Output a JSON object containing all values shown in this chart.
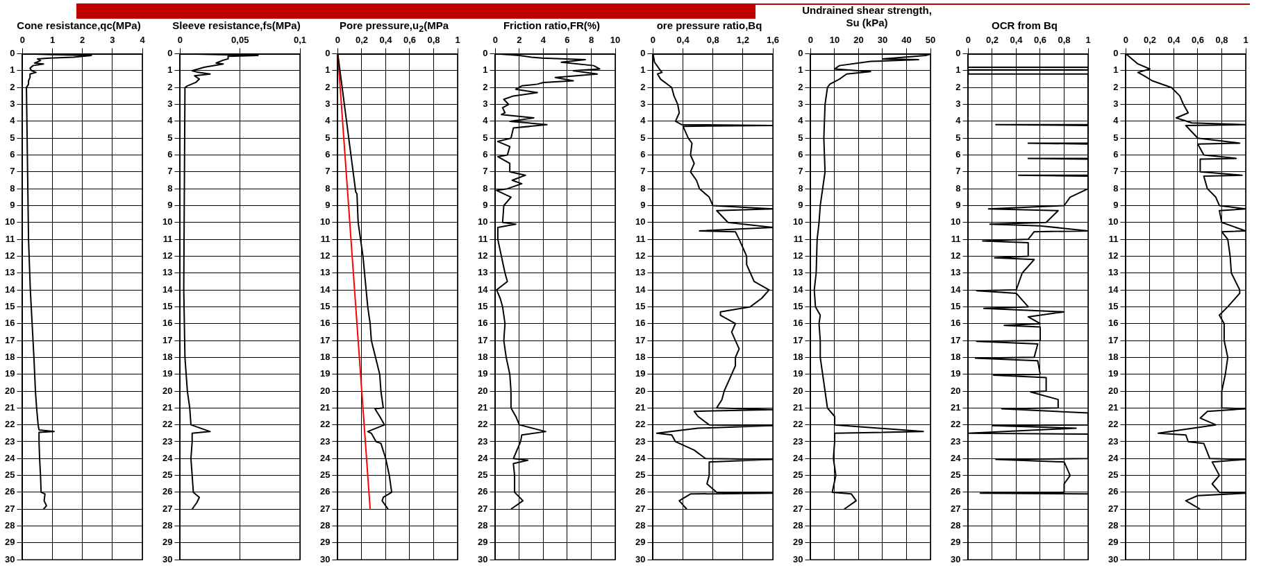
{
  "chart_data": [
    {
      "type": "line",
      "title": "Cone resistance,qc(MPa)",
      "xlim": [
        0,
        4
      ],
      "xticks": [
        0,
        1,
        2,
        3,
        4
      ],
      "ylim": [
        30,
        0
      ],
      "yticks": [
        0,
        1,
        2,
        3,
        4,
        5,
        6,
        7,
        8,
        9,
        10,
        11,
        12,
        13,
        14,
        15,
        16,
        17,
        18,
        19,
        20,
        21,
        22,
        23,
        24,
        25,
        26,
        27,
        28,
        29,
        30
      ],
      "grid": true,
      "marker": "none",
      "series": [
        {
          "color": "#000000",
          "x": [
            0,
            1.0,
            2.3,
            1.7,
            0.9,
            0.5,
            0.6,
            0.4,
            0.7,
            0.35,
            0.25,
            0.3,
            0.45,
            0.25,
            0.25,
            0.2,
            0.2,
            0.13,
            0.2,
            0.26,
            0.32,
            0.38,
            0.43,
            0.47,
            0.52,
            0.55,
            1.05,
            0.55,
            0.55,
            0.57,
            0.6,
            0.62,
            0.75,
            0.72,
            0.8,
            0.7
          ],
          "values": [
            0,
            0.05,
            0.1,
            0.2,
            0.25,
            0.3,
            0.4,
            0.55,
            0.6,
            0.7,
            0.85,
            1.0,
            1.1,
            1.2,
            1.4,
            1.6,
            1.8,
            2,
            11,
            14,
            16,
            18,
            20,
            21,
            22,
            22.3,
            22.4,
            22.45,
            23,
            24,
            25,
            26,
            26.1,
            26.5,
            26.8,
            27
          ]
        }
      ]
    },
    {
      "type": "line",
      "title": "Sleeve resistance,fs(MPa)",
      "xlim": [
        0,
        0.1
      ],
      "xticks": [
        0,
        {
          "value": 0.05,
          "label": "0,05"
        },
        {
          "value": 0.1,
          "label": "0,1"
        }
      ],
      "ylim": [
        30,
        0
      ],
      "yticks": [
        0,
        1,
        2,
        3,
        4,
        5,
        6,
        7,
        8,
        9,
        10,
        11,
        12,
        13,
        14,
        15,
        16,
        17,
        18,
        19,
        20,
        21,
        22,
        23,
        24,
        25,
        26,
        27,
        28,
        29,
        30
      ],
      "grid": true,
      "marker": "none",
      "series": [
        {
          "color": "#000000",
          "x": [
            0,
            0.065,
            0.04,
            0.04,
            0.035,
            0.03,
            0.036,
            0.02,
            0.01,
            0.015,
            0.025,
            0.012,
            0.016,
            0.013,
            0.006,
            0.004,
            0.003,
            0.004,
            0.005,
            0.006,
            0.008,
            0.009,
            0.025,
            0.01,
            0.01,
            0.009,
            0.01,
            0.011,
            0.016,
            0.014,
            0.01
          ],
          "values": [
            0,
            0.1,
            0.15,
            0.3,
            0.4,
            0.55,
            0.6,
            0.8,
            1.0,
            1.1,
            1.2,
            1.3,
            1.5,
            1.7,
            1.9,
            2,
            14,
            18,
            19,
            20,
            21,
            22,
            22.4,
            22.5,
            23,
            24,
            25,
            26,
            26.3,
            26.6,
            27
          ]
        }
      ]
    },
    {
      "type": "line",
      "title": "Pore pressure,u$_{2}$(MPa",
      "xlim": [
        0,
        1
      ],
      "xticks": [
        0,
        {
          "value": 0.2,
          "label": "0,2"
        },
        {
          "value": 0.4,
          "label": "0,4"
        },
        {
          "value": 0.6,
          "label": "0,6"
        },
        {
          "value": 0.8,
          "label": "0,8"
        },
        1
      ],
      "ylim": [
        30,
        0
      ],
      "yticks": [
        0,
        1,
        2,
        3,
        4,
        5,
        6,
        7,
        8,
        9,
        10,
        11,
        12,
        13,
        14,
        15,
        16,
        17,
        18,
        19,
        20,
        21,
        22,
        23,
        24,
        25,
        26,
        27,
        28,
        29,
        30
      ],
      "grid": true,
      "marker": "none",
      "series": [
        {
          "color": "#000000",
          "x": [
            0,
            0.15,
            0.16,
            0.17,
            0.19,
            0.21,
            0.25,
            0.27,
            0.28,
            0.35,
            0.36,
            0.38,
            0.31,
            0.35,
            0.39,
            0.25,
            0.28,
            0.32,
            0.36,
            0.4,
            0.43,
            0.45,
            0.38,
            0.37,
            0.42
          ],
          "values": [
            0,
            8.2,
            8.3,
            10,
            11,
            12,
            15,
            16,
            17,
            19,
            20,
            21,
            21.05,
            21.5,
            22,
            22.4,
            22.5,
            23,
            23.1,
            24,
            25,
            26,
            26.3,
            26.5,
            27
          ]
        },
        {
          "color": "#ff0000",
          "x": [
            0,
            0.27
          ],
          "values": [
            0,
            27
          ]
        }
      ]
    },
    {
      "type": "line",
      "title": "Friction ratio,FR(%)",
      "xlim": [
        0,
        10
      ],
      "xticks": [
        0,
        2,
        4,
        6,
        8,
        10
      ],
      "ylim": [
        30,
        0
      ],
      "yticks": [
        0,
        1,
        2,
        3,
        4,
        5,
        6,
        7,
        8,
        9,
        10,
        11,
        12,
        13,
        14,
        15,
        16,
        17,
        18,
        19,
        20,
        21,
        22,
        23,
        24,
        25,
        26,
        27,
        28,
        29,
        30
      ],
      "grid": true,
      "marker": "none",
      "series": [
        {
          "color": "#000000",
          "x": [
            0,
            2,
            3,
            3.9,
            7.5,
            5.5,
            8.2,
            8.7,
            6.5,
            8.5,
            5,
            6.5,
            4,
            3.5,
            2.2,
            1.7,
            3.5,
            1.5,
            0.7,
            1.1,
            0.6,
            0.8,
            0.5,
            3.2,
            1.2,
            4.3,
            1.5,
            1.3,
            0.2,
            1.2,
            1,
            0.2,
            1.2,
            1.2,
            2.5,
            1.4,
            2.2,
            1,
            0.1,
            1.3,
            0.7,
            0.6,
            1.7,
            0.2,
            0.2,
            0.5,
            0.8,
            1.0,
            0.1,
            0.4,
            0.6,
            0.8,
            0.7,
            0.9,
            1.2,
            1.3,
            1.3,
            1.7,
            2,
            4.2,
            2.2,
            2.1,
            1.5,
            2.7,
            1.5,
            1.6,
            1.6,
            2.3,
            1.3
          ],
          "values": [
            0,
            0.1,
            0.2,
            0.25,
            0.35,
            0.5,
            0.7,
            0.9,
            1.0,
            1.2,
            1.4,
            1.6,
            1.7,
            1.8,
            1.9,
            2.1,
            2.3,
            2.5,
            2.7,
            3,
            3.2,
            3.5,
            3.6,
            3.8,
            4,
            4.2,
            4.4,
            5,
            5.2,
            5.5,
            6,
            6.1,
            6.5,
            7,
            7.2,
            7.5,
            7.7,
            8,
            8.1,
            8.5,
            9,
            10,
            10.1,
            10.3,
            11,
            12,
            13,
            13.5,
            14,
            14.5,
            15,
            16,
            17,
            18,
            19,
            20,
            21,
            21.5,
            22,
            22.4,
            22.6,
            23,
            24,
            24.1,
            24.3,
            25,
            26,
            26.5,
            27
          ]
        }
      ]
    },
    {
      "type": "line",
      "title": "ore pressure ratio,Bq",
      "xlim": [
        0,
        1.6
      ],
      "xticks": [
        0,
        {
          "value": 0.4,
          "label": "0,4"
        },
        {
          "value": 0.8,
          "label": "0,8"
        },
        {
          "value": 1.2,
          "label": "1,2"
        },
        {
          "value": 1.6,
          "label": "1,6"
        }
      ],
      "ylim": [
        30,
        0
      ],
      "yticks": [
        0,
        1,
        2,
        3,
        4,
        5,
        6,
        7,
        8,
        9,
        10,
        11,
        12,
        13,
        14,
        15,
        16,
        17,
        18,
        19,
        20,
        21,
        22,
        23,
        24,
        25,
        26,
        27,
        28,
        29,
        30
      ],
      "grid": true,
      "marker": "none",
      "series": [
        {
          "color": "#000000",
          "x": [
            0,
            0.02,
            0.1,
            0.12,
            0.06,
            0.1,
            0.25,
            0.28,
            0.33,
            0.35,
            0.3,
            0.38,
            1.6,
            0.4,
            0.47,
            0.52,
            0.5,
            0.55,
            0.5,
            0.58,
            0.62,
            0.75,
            0.8,
            1.6,
            0.85,
            1.0,
            1.6,
            0.62,
            1.1,
            1.15,
            1.2,
            1.25,
            1.25,
            1.3,
            1.35,
            1.55,
            1.45,
            1.3,
            0.9,
            0.9,
            1.1,
            1.05,
            1.1,
            1.15,
            1.1,
            1.1,
            1.05,
            1.0,
            0.95,
            0.92,
            0.85,
            1.6,
            0.55,
            0.6,
            0.75,
            1.6,
            0.6,
            0.05,
            0.25,
            0.3,
            0.55,
            0.7,
            1.6,
            0.75,
            0.75,
            0.72,
            0.85,
            1.6,
            0.5,
            0.35,
            0.45
          ],
          "values": [
            0,
            0.5,
            1,
            1.1,
            1.2,
            1.5,
            2,
            2.5,
            3,
            3.5,
            4,
            4.2,
            4.25,
            4.3,
            5,
            5.3,
            6,
            6.5,
            7,
            7.5,
            8,
            8.5,
            9,
            9.2,
            9.3,
            10,
            10.3,
            10.5,
            10.55,
            11,
            11.5,
            12,
            12.5,
            13,
            13.5,
            14,
            14.5,
            15,
            15.3,
            15.5,
            16,
            16.5,
            17,
            17.5,
            18,
            18.5,
            19,
            19.5,
            20,
            20.5,
            21,
            21.1,
            21.2,
            21.5,
            22,
            22.05,
            22.2,
            22.5,
            22.6,
            23,
            23.5,
            24,
            24.05,
            24.2,
            25,
            25.5,
            26,
            26.05,
            26.1,
            26.5,
            27
          ]
        }
      ]
    },
    {
      "type": "line",
      "title": "Undrained shear strength,\nSu (kPa)",
      "xlim": [
        0,
        50
      ],
      "xticks": [
        0,
        10,
        20,
        30,
        40,
        50
      ],
      "ylim": [
        30,
        0
      ],
      "yticks": [
        0,
        1,
        2,
        3,
        4,
        5,
        6,
        7,
        8,
        9,
        10,
        11,
        12,
        13,
        14,
        15,
        16,
        17,
        18,
        19,
        20,
        21,
        22,
        23,
        24,
        25,
        26,
        27,
        28,
        29,
        30
      ],
      "grid": true,
      "marker": "none",
      "series": [
        {
          "color": "#000000",
          "x": [
            0,
            50,
            48,
            30,
            45,
            25,
            12,
            10,
            25,
            15,
            12,
            8,
            7,
            6,
            5.5,
            6,
            5,
            4,
            3.5,
            2.7,
            2.3,
            1.5,
            2,
            4,
            3.5,
            4,
            4,
            5,
            6,
            7,
            10,
            10,
            47,
            10,
            10,
            9.5,
            10.5,
            9,
            17,
            19,
            14
          ],
          "values": [
            0,
            0.02,
            0.1,
            0.3,
            0.35,
            0.45,
            0.7,
            0.9,
            1.05,
            1.2,
            1.5,
            1.8,
            2,
            3,
            5,
            7,
            8,
            9,
            10,
            11,
            13,
            14,
            15,
            15.5,
            16,
            17,
            18,
            19,
            20,
            21,
            21.5,
            22,
            22.4,
            22.5,
            23,
            24,
            25,
            26,
            26.1,
            26.5,
            27
          ]
        }
      ]
    },
    {
      "type": "line",
      "title": "OCR from Bq",
      "xlim": [
        0,
        1
      ],
      "xticks": [
        0,
        {
          "value": 0.2,
          "label": "0,2"
        },
        {
          "value": 0.4,
          "label": "0,4"
        },
        {
          "value": 0.6,
          "label": "0,6"
        },
        {
          "value": 0.8,
          "label": "0,8"
        },
        1
      ],
      "ylim": [
        30,
        0
      ],
      "yticks": [
        0,
        1,
        2,
        3,
        4,
        5,
        6,
        7,
        8,
        9,
        10,
        11,
        12,
        13,
        14,
        15,
        16,
        17,
        18,
        19,
        20,
        21,
        22,
        23,
        24,
        25,
        26,
        27,
        28,
        29,
        30
      ],
      "grid": true,
      "marker": "none",
      "series": [
        {
          "color": "#000000",
          "x": [
            0,
            1,
            1,
            0,
            0,
            1,
            1,
            0.23,
            1,
            1,
            0.5,
            1,
            1,
            0.5,
            1,
            1,
            0.42,
            1,
            1,
            0.85,
            0.8,
            0.17,
            0.75,
            0.65,
            0.18,
            0.6,
            1,
            0.55,
            0.5,
            0.12,
            0.5,
            0.5,
            0.22,
            0.55,
            0.45,
            0.4,
            0.07,
            0.4,
            0.5,
            0.13,
            0.8,
            0.5,
            0.6,
            0.3,
            0.6,
            0.6,
            0.07,
            0.58,
            0.55,
            0.06,
            0.58,
            0.6,
            0.21,
            0.65,
            0.65,
            0.52,
            0.75,
            0.75,
            0.28,
            1,
            1,
            0.2,
            0.9,
            0,
            1,
            1,
            0.23,
            0.8,
            0.85,
            0.8,
            0.8,
            0.1,
            1
          ],
          "values": [
            0.8,
            0.8,
            0.95,
            0.95,
            1.2,
            1.2,
            4.2,
            4.2,
            4.25,
            5.3,
            5.3,
            5.35,
            6.2,
            6.2,
            6.25,
            7.2,
            7.2,
            7.25,
            8,
            8.5,
            9,
            9.2,
            9.3,
            10,
            10.1,
            10.2,
            10.5,
            10.55,
            11,
            11.1,
            11.2,
            12,
            12.1,
            12.2,
            13,
            14,
            14.05,
            14.2,
            15,
            15.1,
            15.3,
            15.6,
            16,
            16.1,
            16.2,
            17,
            17.05,
            17.2,
            18,
            18.05,
            18.2,
            19,
            19.05,
            19.2,
            20,
            20.05,
            20.5,
            21,
            21.05,
            21.3,
            22,
            22.05,
            22.2,
            22.5,
            22.55,
            24,
            24.05,
            24.2,
            25,
            25.5,
            26,
            26.05,
            26.1
          ]
        }
      ]
    },
    {
      "type": "line",
      "xlim": [
        0,
        1
      ],
      "xticks": [
        0,
        {
          "value": 0.2,
          "label": "0,2"
        },
        {
          "value": 0.4,
          "label": "0,4"
        },
        {
          "value": 0.6,
          "label": "0,6"
        },
        {
          "value": 0.8,
          "label": "0,8"
        },
        1
      ],
      "ylim": [
        30,
        0
      ],
      "yticks": [
        0,
        1,
        2,
        3,
        4,
        5,
        6,
        7,
        8,
        9,
        10,
        11,
        12,
        13,
        14,
        15,
        16,
        17,
        18,
        19,
        20,
        21,
        22,
        23,
        24,
        25,
        26,
        27,
        28,
        29,
        30
      ],
      "grid": true,
      "marker": "none",
      "series": [
        {
          "color": "#000000",
          "x": [
            0,
            0.05,
            0.1,
            0.2,
            0.1,
            0.15,
            0.22,
            0.38,
            0.45,
            0.48,
            0.52,
            0.42,
            0.55,
            1,
            0.5,
            0.6,
            0.95,
            0.6,
            0.65,
            0.92,
            0.62,
            0.62,
            0.97,
            0.65,
            0.68,
            0.75,
            0.78,
            1,
            0.78,
            0.8,
            1,
            0.8,
            0.85,
            0.87,
            0.88,
            0.95,
            0.95,
            0.85,
            0.78,
            0.82,
            0.82,
            0.85,
            0.83,
            0.8,
            0.8,
            1,
            0.68,
            0.62,
            0.75,
            0.27,
            0.5,
            0.52,
            0.65,
            0.7,
            1,
            0.72,
            0.78,
            0.72,
            0.78,
            1,
            0.6,
            0.5,
            0.62
          ],
          "values": [
            0,
            0.3,
            0.6,
            0.9,
            1.1,
            1.3,
            1.6,
            2,
            2.5,
            3,
            3.5,
            3.8,
            4.1,
            4.2,
            4.25,
            5,
            5.3,
            5.35,
            6,
            6.2,
            6.25,
            7,
            7.2,
            7.25,
            8,
            8.5,
            9,
            9.2,
            9.3,
            10,
            10.5,
            10.55,
            11,
            12,
            13,
            14,
            14.2,
            15,
            15.5,
            16,
            17,
            18,
            19,
            20,
            21,
            21.05,
            21.2,
            21.6,
            22,
            22.5,
            22.6,
            23,
            23.1,
            24,
            24.05,
            24.2,
            25,
            25.5,
            26,
            26.05,
            26.2,
            26.5,
            27
          ]
        }
      ]
    }
  ]
}
